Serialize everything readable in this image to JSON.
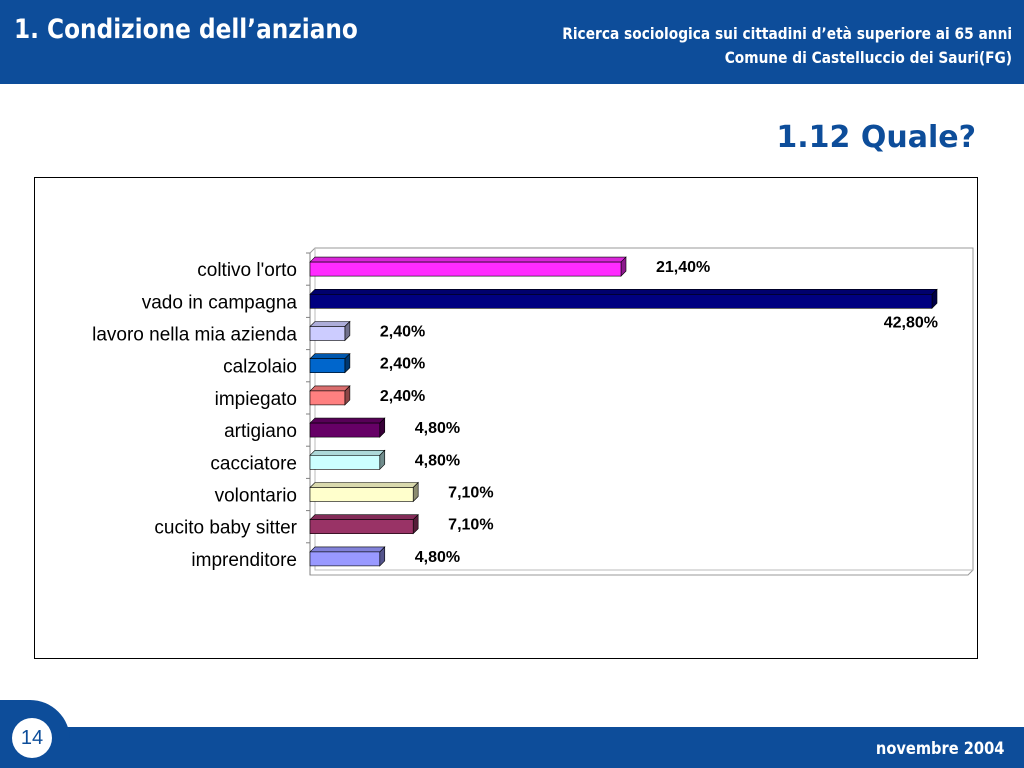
{
  "header": {
    "section_title": "1. Condizione dell’anziano",
    "subtitle_line1": "Ricerca sociologica sui cittadini d’età superiore ai 65 anni",
    "subtitle_line2": "Comune di Castelluccio dei Sauri(FG)"
  },
  "slide": {
    "title": "1.12 Quale?"
  },
  "footer": {
    "page_number": "14",
    "date": "novembre 2004"
  },
  "chart_data": {
    "type": "bar",
    "orientation": "horizontal",
    "categories": [
      "coltivo l'orto",
      "vado in campagna",
      "lavoro nella mia azienda",
      "calzolaio",
      "impiegato",
      "artigiano",
      "cacciatore",
      "volontario",
      "cucito baby sitter",
      "imprenditore"
    ],
    "values": [
      21.4,
      42.8,
      2.4,
      2.4,
      2.4,
      4.8,
      4.8,
      7.1,
      7.1,
      4.8
    ],
    "labels": [
      "21,40%",
      "42,80%",
      "2,40%",
      "2,40%",
      "2,40%",
      "4,80%",
      "4,80%",
      "7,10%",
      "7,10%",
      "4,80%"
    ],
    "colors": [
      "#ff2bff",
      "#000080",
      "#ccccff",
      "#0066cc",
      "#ff8080",
      "#660066",
      "#ccffff",
      "#ffffcc",
      "#993366",
      "#9999ff"
    ],
    "xlim": [
      0,
      42.8
    ],
    "grid": false,
    "legend": "none"
  }
}
